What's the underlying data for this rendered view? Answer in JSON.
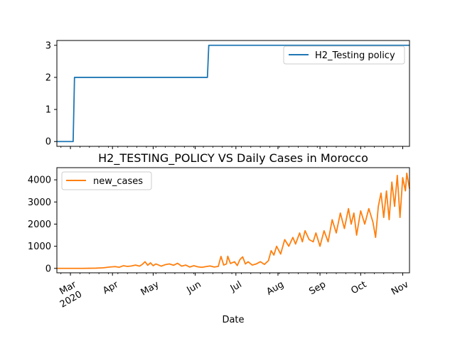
{
  "chart_data": [
    {
      "type": "line",
      "title": "",
      "xlabel": "",
      "ylabel": "",
      "x_range": [
        "2020-02-20",
        "2020-11-06"
      ],
      "ylim": [
        -0.15,
        3.15
      ],
      "yticks": [
        0,
        1,
        2,
        3
      ],
      "grid": false,
      "legend_position": "top-right",
      "series": [
        {
          "name": "H2_Testing policy",
          "color": "#1f77b4",
          "points": [
            [
              "2020-02-20",
              0
            ],
            [
              "2020-03-03",
              0
            ],
            [
              "2020-03-04",
              2
            ],
            [
              "2020-06-10",
              2
            ],
            [
              "2020-06-11",
              3
            ],
            [
              "2020-11-06",
              3
            ]
          ]
        }
      ]
    },
    {
      "type": "line",
      "title": "H2_TESTING_POLICY VS Daily Cases in Morocco",
      "xlabel": "Date",
      "ylabel": "",
      "x_range": [
        "2020-02-20",
        "2020-11-06"
      ],
      "ylim": [
        -200,
        4550
      ],
      "yticks": [
        0,
        1000,
        2000,
        3000,
        4000
      ],
      "x_tick_labels": [
        {
          "date": "2020-03-01",
          "label": "Mar",
          "sub": "2020"
        },
        {
          "date": "2020-04-01",
          "label": "Apr",
          "sub": ""
        },
        {
          "date": "2020-05-01",
          "label": "May",
          "sub": ""
        },
        {
          "date": "2020-06-01",
          "label": "Jun",
          "sub": ""
        },
        {
          "date": "2020-07-01",
          "label": "Jul",
          "sub": ""
        },
        {
          "date": "2020-08-01",
          "label": "Aug",
          "sub": ""
        },
        {
          "date": "2020-09-01",
          "label": "Sep",
          "sub": ""
        },
        {
          "date": "2020-10-01",
          "label": "Oct",
          "sub": ""
        },
        {
          "date": "2020-11-01",
          "label": "Nov",
          "sub": ""
        }
      ],
      "grid": false,
      "legend_position": "top-left",
      "series": [
        {
          "name": "new_cases",
          "color": "#ff7f0e",
          "points": [
            [
              "2020-02-20",
              0
            ],
            [
              "2020-03-01",
              0
            ],
            [
              "2020-03-10",
              0
            ],
            [
              "2020-03-20",
              10
            ],
            [
              "2020-03-25",
              25
            ],
            [
              "2020-03-30",
              60
            ],
            [
              "2020-04-03",
              80
            ],
            [
              "2020-04-06",
              50
            ],
            [
              "2020-04-09",
              120
            ],
            [
              "2020-04-12",
              90
            ],
            [
              "2020-04-15",
              110
            ],
            [
              "2020-04-18",
              150
            ],
            [
              "2020-04-21",
              100
            ],
            [
              "2020-04-23",
              180
            ],
            [
              "2020-04-25",
              300
            ],
            [
              "2020-04-27",
              140
            ],
            [
              "2020-04-29",
              250
            ],
            [
              "2020-05-01",
              120
            ],
            [
              "2020-05-03",
              200
            ],
            [
              "2020-05-05",
              150
            ],
            [
              "2020-05-07",
              100
            ],
            [
              "2020-05-10",
              170
            ],
            [
              "2020-05-13",
              200
            ],
            [
              "2020-05-16",
              140
            ],
            [
              "2020-05-19",
              230
            ],
            [
              "2020-05-22",
              100
            ],
            [
              "2020-05-25",
              150
            ],
            [
              "2020-05-28",
              60
            ],
            [
              "2020-05-31",
              120
            ],
            [
              "2020-06-03",
              70
            ],
            [
              "2020-06-06",
              50
            ],
            [
              "2020-06-09",
              80
            ],
            [
              "2020-06-12",
              110
            ],
            [
              "2020-06-15",
              60
            ],
            [
              "2020-06-18",
              90
            ],
            [
              "2020-06-20",
              540
            ],
            [
              "2020-06-22",
              150
            ],
            [
              "2020-06-24",
              200
            ],
            [
              "2020-06-25",
              550
            ],
            [
              "2020-06-27",
              220
            ],
            [
              "2020-06-30",
              300
            ],
            [
              "2020-07-02",
              130
            ],
            [
              "2020-07-04",
              400
            ],
            [
              "2020-07-06",
              520
            ],
            [
              "2020-07-08",
              200
            ],
            [
              "2020-07-10",
              300
            ],
            [
              "2020-07-13",
              150
            ],
            [
              "2020-07-16",
              200
            ],
            [
              "2020-07-19",
              300
            ],
            [
              "2020-07-22",
              180
            ],
            [
              "2020-07-25",
              350
            ],
            [
              "2020-07-27",
              800
            ],
            [
              "2020-07-29",
              600
            ],
            [
              "2020-07-31",
              1000
            ],
            [
              "2020-08-03",
              650
            ],
            [
              "2020-08-06",
              1300
            ],
            [
              "2020-08-09",
              1000
            ],
            [
              "2020-08-12",
              1400
            ],
            [
              "2020-08-14",
              1100
            ],
            [
              "2020-08-17",
              1600
            ],
            [
              "2020-08-19",
              1200
            ],
            [
              "2020-08-21",
              1700
            ],
            [
              "2020-08-24",
              1300
            ],
            [
              "2020-08-27",
              1200
            ],
            [
              "2020-08-29",
              1600
            ],
            [
              "2020-09-01",
              1000
            ],
            [
              "2020-09-04",
              1700
            ],
            [
              "2020-09-07",
              1200
            ],
            [
              "2020-09-10",
              2200
            ],
            [
              "2020-09-13",
              1600
            ],
            [
              "2020-09-16",
              2500
            ],
            [
              "2020-09-19",
              1800
            ],
            [
              "2020-09-22",
              2700
            ],
            [
              "2020-09-24",
              2000
            ],
            [
              "2020-09-26",
              2500
            ],
            [
              "2020-09-28",
              1500
            ],
            [
              "2020-10-01",
              2600
            ],
            [
              "2020-10-04",
              2000
            ],
            [
              "2020-10-07",
              2700
            ],
            [
              "2020-10-10",
              2100
            ],
            [
              "2020-10-12",
              1400
            ],
            [
              "2020-10-14",
              2800
            ],
            [
              "2020-10-16",
              3400
            ],
            [
              "2020-10-18",
              2300
            ],
            [
              "2020-10-20",
              3500
            ],
            [
              "2020-10-22",
              2200
            ],
            [
              "2020-10-24",
              3900
            ],
            [
              "2020-10-26",
              2800
            ],
            [
              "2020-10-28",
              4200
            ],
            [
              "2020-10-30",
              2300
            ],
            [
              "2020-11-01",
              4100
            ],
            [
              "2020-11-03",
              3500
            ],
            [
              "2020-11-04",
              4300
            ],
            [
              "2020-11-06",
              3600
            ]
          ]
        }
      ]
    }
  ]
}
